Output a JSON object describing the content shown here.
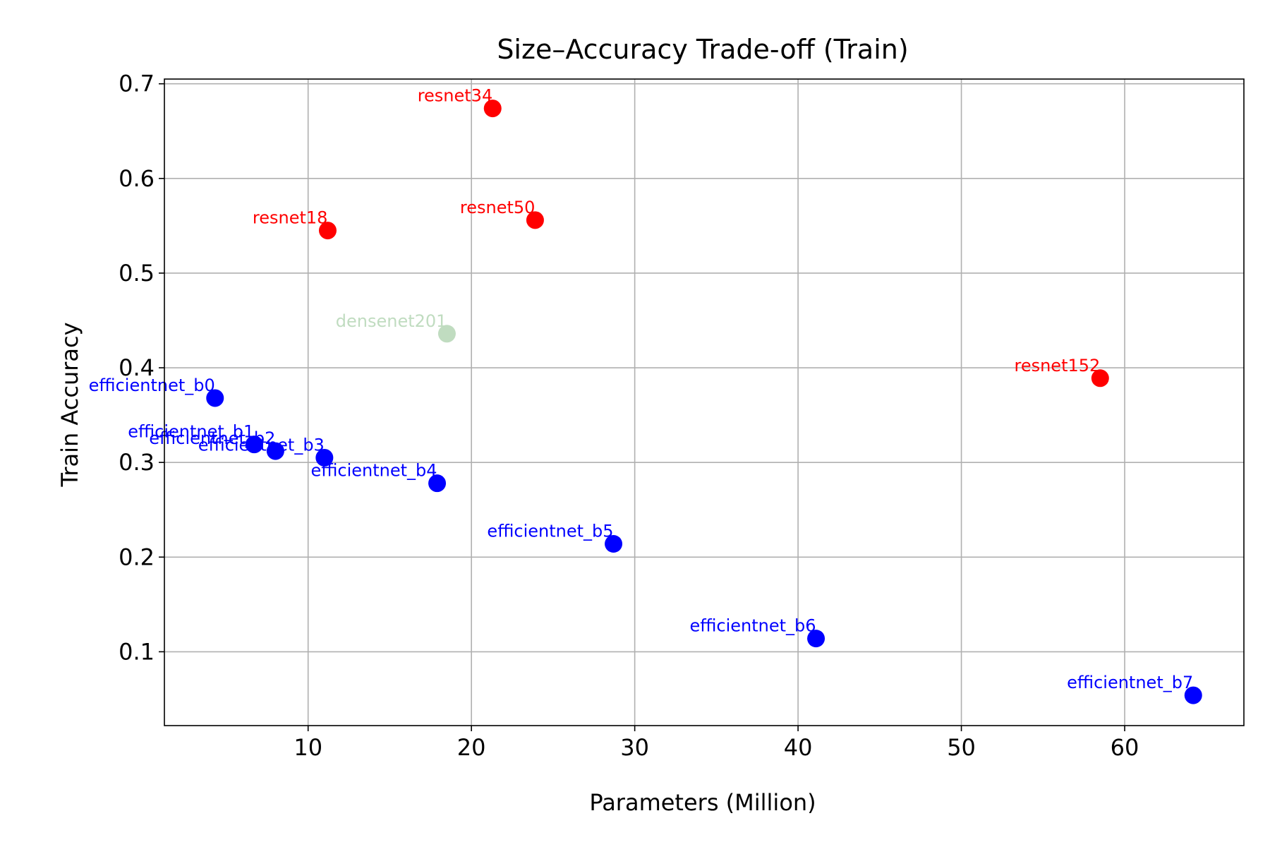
{
  "chart_data": {
    "type": "scatter",
    "title": "Size–Accuracy Trade-off (Train)",
    "xlabel": "Parameters (Million)",
    "ylabel": "Train Accuracy",
    "xlim": [
      1.2,
      67.3
    ],
    "ylim": [
      0.022,
      0.705
    ],
    "xticks": [
      10,
      20,
      30,
      40,
      50,
      60
    ],
    "yticks": [
      0.1,
      0.2,
      0.3,
      0.4,
      0.5,
      0.6,
      0.7
    ],
    "xtick_labels": [
      "10",
      "20",
      "30",
      "40",
      "50",
      "60"
    ],
    "ytick_labels": [
      "0.1",
      "0.2",
      "0.3",
      "0.4",
      "0.5",
      "0.6",
      "0.7"
    ],
    "grid": true,
    "legend": "none",
    "series": [
      {
        "color": "#ff0000",
        "points": [
          {
            "label": "resnet18",
            "x": 11.2,
            "y": 0.545
          },
          {
            "label": "resnet34",
            "x": 21.3,
            "y": 0.674
          },
          {
            "label": "resnet50",
            "x": 23.9,
            "y": 0.556
          },
          {
            "label": "resnet152",
            "x": 58.5,
            "y": 0.389
          }
        ]
      },
      {
        "color": "#c0dcc0",
        "points": [
          {
            "label": "densenet201",
            "x": 18.5,
            "y": 0.436
          }
        ]
      },
      {
        "color": "#0000ff",
        "points": [
          {
            "label": "efficientnet_b0",
            "x": 4.3,
            "y": 0.368
          },
          {
            "label": "efficientnet_b1",
            "x": 6.7,
            "y": 0.319
          },
          {
            "label": "efficientnet_b2",
            "x": 8.0,
            "y": 0.312
          },
          {
            "label": "efficientnet_b3",
            "x": 11.0,
            "y": 0.305
          },
          {
            "label": "efficientnet_b4",
            "x": 17.9,
            "y": 0.278
          },
          {
            "label": "efficientnet_b5",
            "x": 28.7,
            "y": 0.214
          },
          {
            "label": "efficientnet_b6",
            "x": 41.1,
            "y": 0.114
          },
          {
            "label": "efficientnet_b7",
            "x": 64.2,
            "y": 0.054
          }
        ]
      }
    ]
  }
}
